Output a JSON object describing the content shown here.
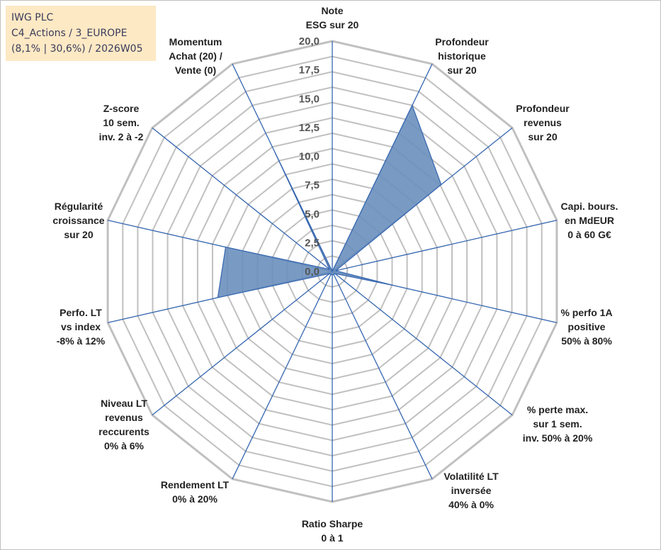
{
  "header": {
    "line1": "IWG PLC",
    "line2": "C4_Actions / 3_EUROPE",
    "line3": "(8,1% | 30,6%) / 2026W05"
  },
  "colors": {
    "grid": "#c0c0c0",
    "spoke": "#3566b0",
    "fill": "#6a8fbd",
    "fill_stroke": "#3566b0",
    "header_bg": "#fde9c4"
  },
  "chart_data": {
    "type": "radar",
    "rmin": 0,
    "rmax": 20,
    "tick_step": 2.5,
    "ticks": [
      "0,0",
      "2,5",
      "5,0",
      "7,5",
      "10,0",
      "12,5",
      "15,0",
      "17,5",
      "20,0"
    ],
    "grid_circles": 15,
    "axes": [
      {
        "label": [
          "Note",
          "ESG sur 20"
        ],
        "value": 0
      },
      {
        "label": [
          "Profondeur",
          "historique",
          "sur 20"
        ],
        "value": 16
      },
      {
        "label": [
          "Profondeur",
          "revenus",
          "sur 20"
        ],
        "value": 12.1
      },
      {
        "label": [
          "Capi. bours.",
          "en MdEUR",
          "0 à 60 G€"
        ],
        "value": 0.3
      },
      {
        "label": [
          "% perfo 1A",
          "positive",
          "50% à 80%"
        ],
        "value": 5.4
      },
      {
        "label": [
          "% perte max.",
          "sur 1 sem.",
          "inv. 50% à 20%"
        ],
        "value": 0.3
      },
      {
        "label": [
          "Volatilité LT",
          "inversée",
          "40% à 0%"
        ],
        "value": 0.3
      },
      {
        "label": [
          "Ratio Sharpe",
          "0 à 1"
        ],
        "value": 0.3
      },
      {
        "label": [
          "Rendement LT",
          "0% à 20%"
        ],
        "value": 0.3
      },
      {
        "label": [
          "Niveau LT",
          "revenus",
          "reccurents",
          "0% à 6%"
        ],
        "value": 0.3
      },
      {
        "label": [
          "Perfo. LT",
          "vs index",
          "-8% à 12%"
        ],
        "value": 10.2
      },
      {
        "label": [
          "Régularité",
          "croissance",
          "sur 20"
        ],
        "value": 9.5
      },
      {
        "label": [
          "Z-score",
          "10 sem.",
          "inv. 2 à -2"
        ],
        "value": 0.3
      },
      {
        "label": [
          "Momentum",
          "Achat (20) /",
          "Vente (0)"
        ],
        "value": 11.4
      }
    ]
  }
}
